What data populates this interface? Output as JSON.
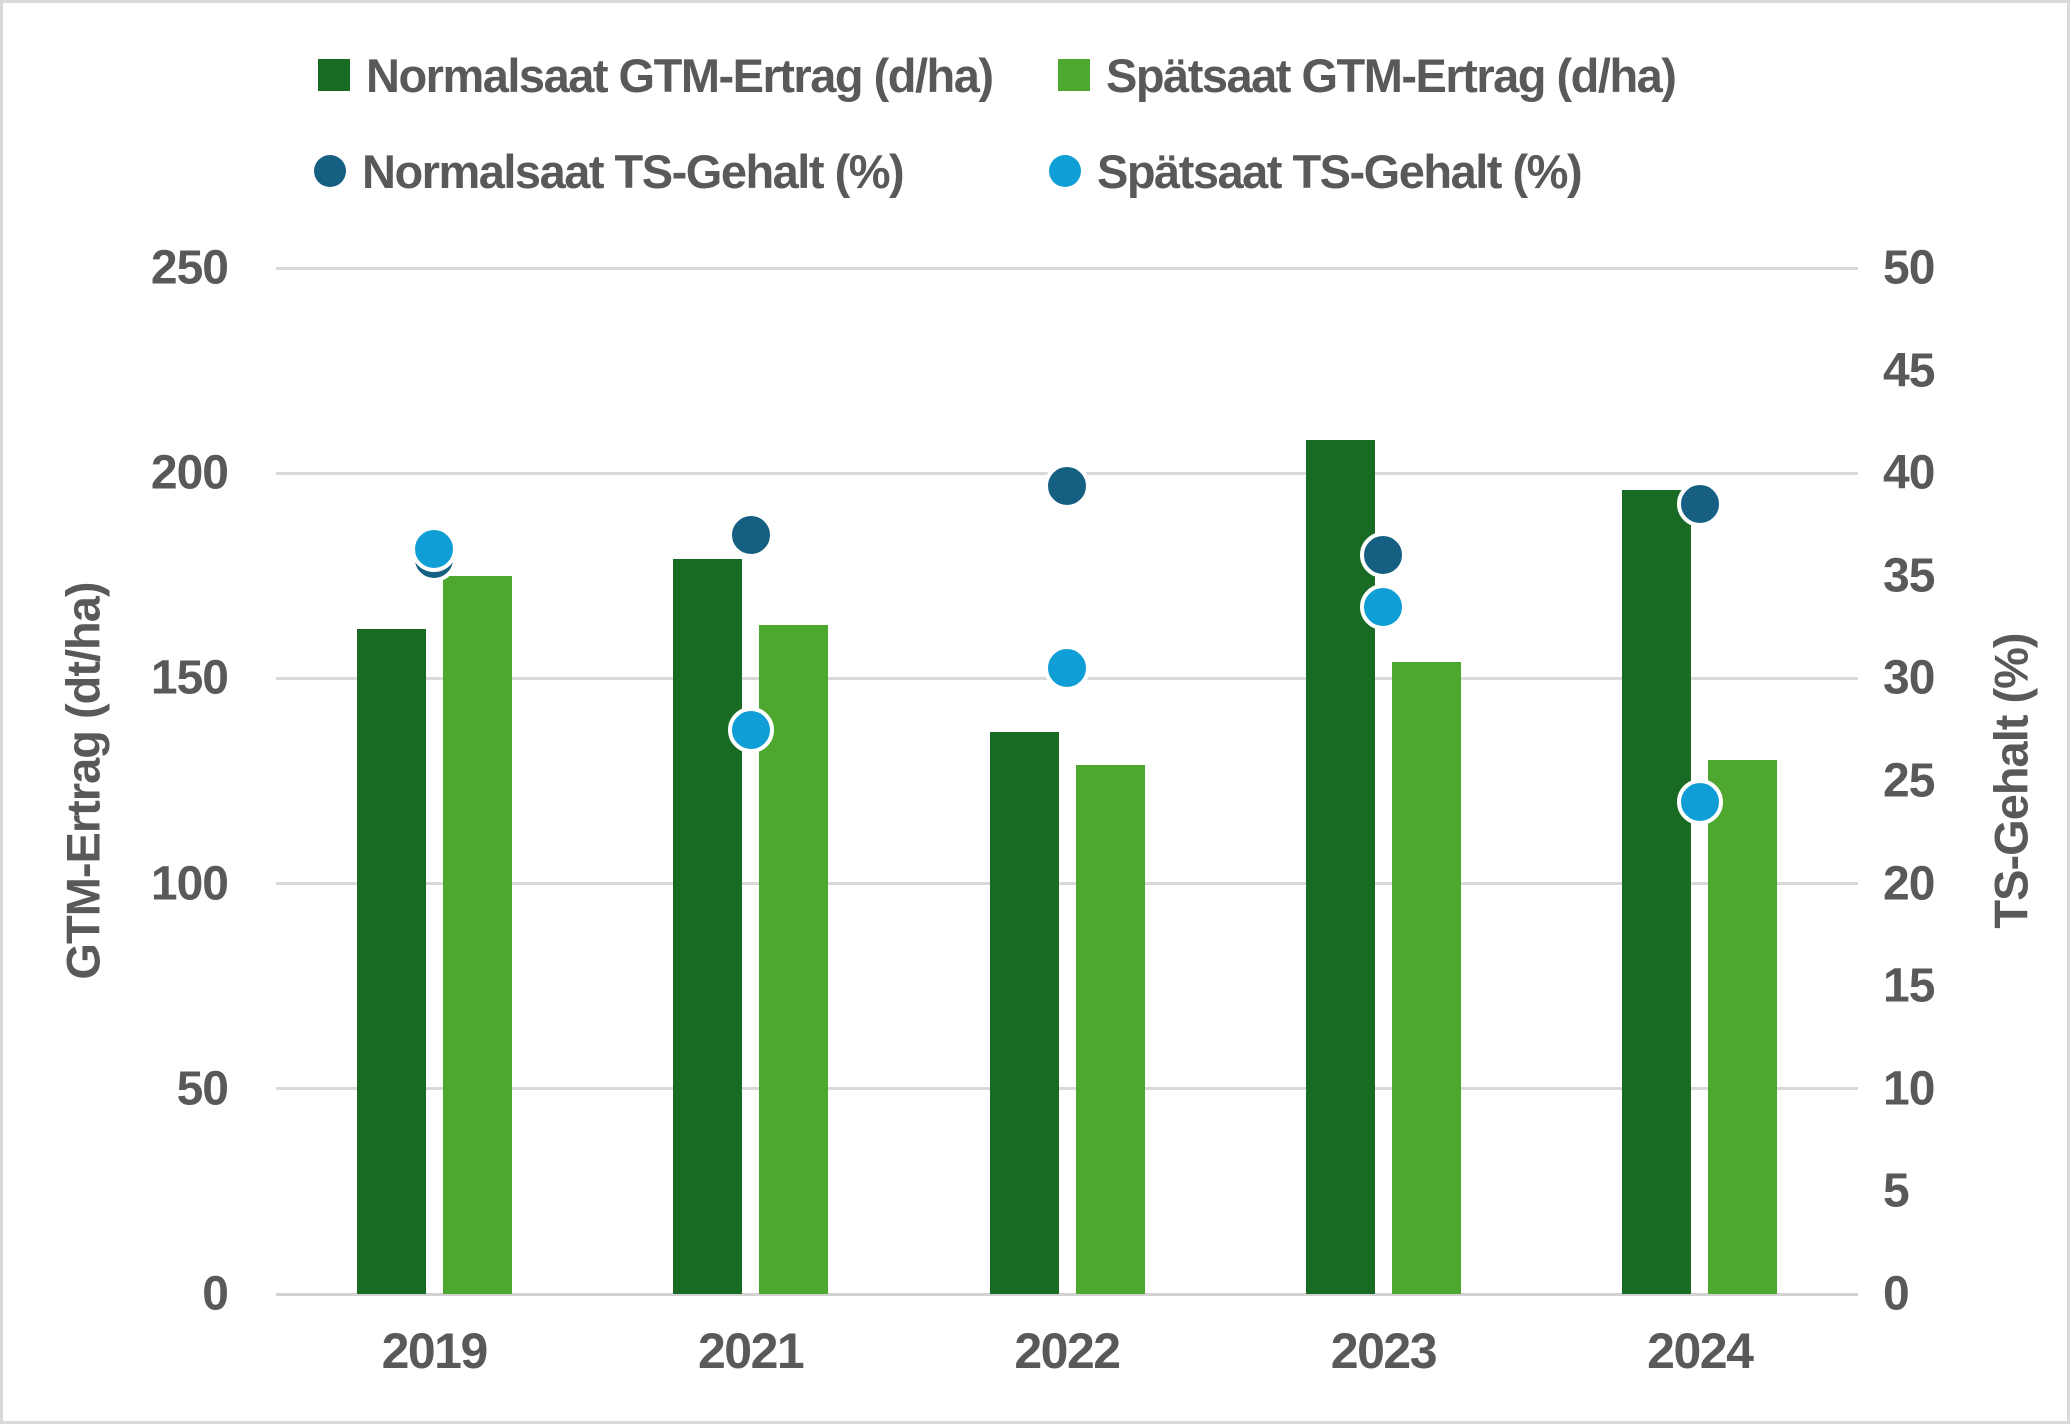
{
  "chart_data": {
    "type": "combo-bar-scatter",
    "categories": [
      "2019",
      "2021",
      "2022",
      "2023",
      "2024"
    ],
    "bar_series": [
      {
        "name": "Normalsaat GTM-Ertrag (d/ha)",
        "color": "#196B24",
        "axis": "left",
        "values": [
          162,
          179,
          137,
          208,
          196
        ]
      },
      {
        "name": "Spätsaat GTM-Ertrag (d/ha)",
        "color": "#4EA72E",
        "axis": "left",
        "values": [
          175,
          163,
          129,
          154,
          130
        ]
      }
    ],
    "scatter_series": [
      {
        "name": "Normalsaat TS-Gehalt (%)",
        "color": "#156082",
        "axis": "right",
        "values": [
          35.8,
          37,
          39.4,
          36,
          38.5
        ]
      },
      {
        "name": "Spätsaat TS-Gehalt (%)",
        "color": "#0F9ED5",
        "axis": "right",
        "values": [
          36.3,
          27.5,
          30.5,
          33.5,
          24
        ]
      }
    ],
    "left_axis": {
      "title": "GTM-Ertrag (dt/ha)",
      "min": 0,
      "max": 250,
      "step": 50
    },
    "right_axis": {
      "title": "TS-Gehalt (%)",
      "min": 0,
      "max": 50,
      "step": 5
    },
    "legend_position": "top",
    "grid": true
  },
  "styles": {
    "text_color": "#595959",
    "gridline_color": "#d9d9d9",
    "background": "#ffffff",
    "border_color": "#d9d9d9"
  }
}
